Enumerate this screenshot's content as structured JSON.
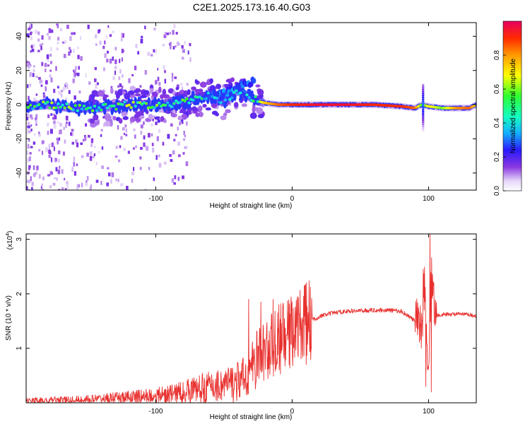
{
  "figure": {
    "title": "C2E1.2025.173.16.40.G03"
  },
  "chart_data": [
    {
      "type": "heatmap",
      "xlabel": "Height of straight line (km)",
      "ylabel": "Frequency (Hz)",
      "xlim": [
        -195,
        135
      ],
      "ylim": [
        -50,
        48
      ],
      "xticks": [
        -100,
        0,
        100
      ],
      "xtick_labels": [
        "-100",
        "0",
        "100"
      ],
      "yticks": [
        -40,
        -20,
        0,
        20,
        40
      ],
      "ytick_labels": [
        "-40",
        "-20",
        "0",
        "20",
        "40"
      ],
      "colorbar": {
        "label": "Normalized spectral amplitude",
        "range": [
          0,
          1
        ],
        "ticks": [
          0.0,
          0.2,
          0.4,
          0.6,
          0.8
        ],
        "tick_labels": [
          "0.0",
          "0.2",
          "0.4",
          "0.6",
          "0.8"
        ],
        "colormap": [
          "#ffffff",
          "#e4d4f8",
          "#8a38e0",
          "#2a1aff",
          "#14b0ff",
          "#14ffc0",
          "#30ff30",
          "#ffff00",
          "#ff9a00",
          "#ff2a00",
          "#e80060"
        ]
      },
      "ridge": [
        [
          -195,
          -1,
          0.55
        ],
        [
          -180,
          0,
          0.6
        ],
        [
          -160,
          -2,
          0.6
        ],
        [
          -140,
          -2,
          0.55
        ],
        [
          -120,
          0,
          0.65
        ],
        [
          -100,
          0,
          0.6
        ],
        [
          -80,
          1,
          0.55
        ],
        [
          -70,
          4,
          0.5
        ],
        [
          -60,
          5,
          0.45
        ],
        [
          -50,
          2,
          0.45
        ],
        [
          -40,
          8,
          0.4
        ],
        [
          -30,
          4,
          0.45
        ],
        [
          -25,
          2,
          0.6
        ],
        [
          -20,
          1,
          0.75
        ],
        [
          -10,
          0,
          0.85
        ],
        [
          0,
          0,
          0.9
        ],
        [
          20,
          0,
          0.95
        ],
        [
          40,
          0,
          0.95
        ],
        [
          60,
          0,
          0.9
        ],
        [
          80,
          -1,
          0.9
        ],
        [
          90,
          -2,
          0.85
        ],
        [
          95,
          0,
          0.55
        ],
        [
          100,
          -1,
          0.7
        ],
        [
          110,
          -2,
          0.6
        ],
        [
          120,
          -2,
          0.8
        ],
        [
          130,
          -2,
          0.85
        ],
        [
          135,
          0,
          0.7
        ]
      ],
      "upper_branch": [
        [
          -60,
          5
        ],
        [
          -50,
          7
        ],
        [
          -40,
          11
        ],
        [
          -30,
          13
        ],
        [
          -28,
          15
        ]
      ]
    },
    {
      "type": "line",
      "xlabel": "Height of straight line (km)",
      "ylabel": "SNR (10 * v/v)",
      "y_multiplier_label": "(x10",
      "y_multiplier_exp": "4",
      "y_multiplier_close": ")",
      "xlim": [
        -195,
        135
      ],
      "ylim": [
        0,
        3.1
      ],
      "xticks": [
        -100,
        0,
        100
      ],
      "xtick_labels": [
        "-100",
        "0",
        "100"
      ],
      "yticks": [
        1,
        2,
        3
      ],
      "ytick_labels": [
        "1",
        "2",
        "3"
      ],
      "series": [
        {
          "color": "#e8312f",
          "x": [
            -195,
            -180,
            -160,
            -140,
            -120,
            -100,
            -90,
            -80,
            -70,
            -60,
            -50,
            -40,
            -35,
            -30,
            -25,
            -20,
            -15,
            -10,
            -5,
            0,
            5,
            10,
            15,
            20,
            25,
            30,
            40,
            50,
            60,
            70,
            80,
            85,
            90,
            95,
            97,
            100,
            102,
            105,
            110,
            120,
            130,
            135
          ],
          "y": [
            0.03,
            0.04,
            0.05,
            0.07,
            0.1,
            0.13,
            0.16,
            0.2,
            0.25,
            0.3,
            0.33,
            0.38,
            0.45,
            0.62,
            0.85,
            0.95,
            1.05,
            1.15,
            1.2,
            1.3,
            1.35,
            1.45,
            1.52,
            1.58,
            1.62,
            1.65,
            1.68,
            1.69,
            1.7,
            1.7,
            1.68,
            1.6,
            1.5,
            1.4,
            2.2,
            0.5,
            2.4,
            1.6,
            1.62,
            1.63,
            1.62,
            1.58
          ]
        }
      ],
      "spikes": [
        [
          -32,
          1.9
        ],
        [
          -23,
          1.85
        ],
        [
          -14,
          1.9
        ],
        [
          -7,
          1.75
        ],
        [
          0,
          1.85
        ],
        [
          4,
          1.95
        ],
        [
          9,
          2.15
        ],
        [
          96,
          2.45
        ],
        [
          98,
          0.3
        ],
        [
          101,
          3.1
        ],
        [
          102,
          0.2
        ],
        [
          104,
          2.2
        ]
      ]
    }
  ]
}
